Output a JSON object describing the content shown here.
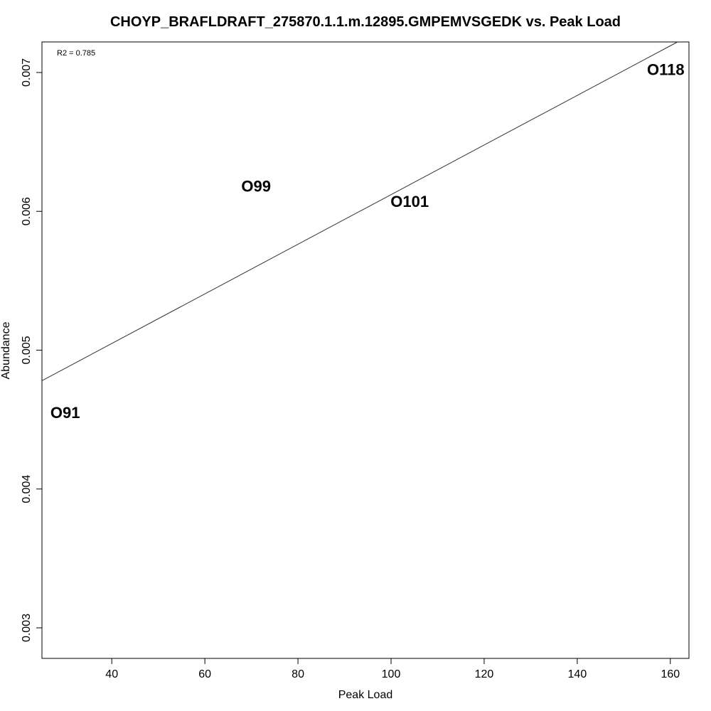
{
  "chart_data": {
    "type": "scatter",
    "title": "CHOYP_BRAFLDRAFT_275870.1.1.m.12895.GMPEMVSGEDK vs. Peak Load",
    "xlabel": "Peak Load",
    "ylabel": "Abundance",
    "annotation": "R2 = 0.785",
    "xlim": [
      25,
      164
    ],
    "ylim": [
      0.00278,
      0.00722
    ],
    "x_ticks": [
      40,
      60,
      80,
      100,
      120,
      140,
      160
    ],
    "y_ticks": [
      0.003,
      0.004,
      0.005,
      0.006,
      0.007
    ],
    "points": [
      {
        "label": "O91",
        "x": 30,
        "y": 0.00455
      },
      {
        "label": "O99",
        "x": 71,
        "y": 0.00618
      },
      {
        "label": "O101",
        "x": 104,
        "y": 0.00607
      },
      {
        "label": "O118",
        "x": 159,
        "y": 0.00702
      }
    ],
    "fit_line": {
      "slope": 1.787e-05,
      "intercept": 0.0043332
    },
    "grid": false,
    "legend": "none"
  }
}
